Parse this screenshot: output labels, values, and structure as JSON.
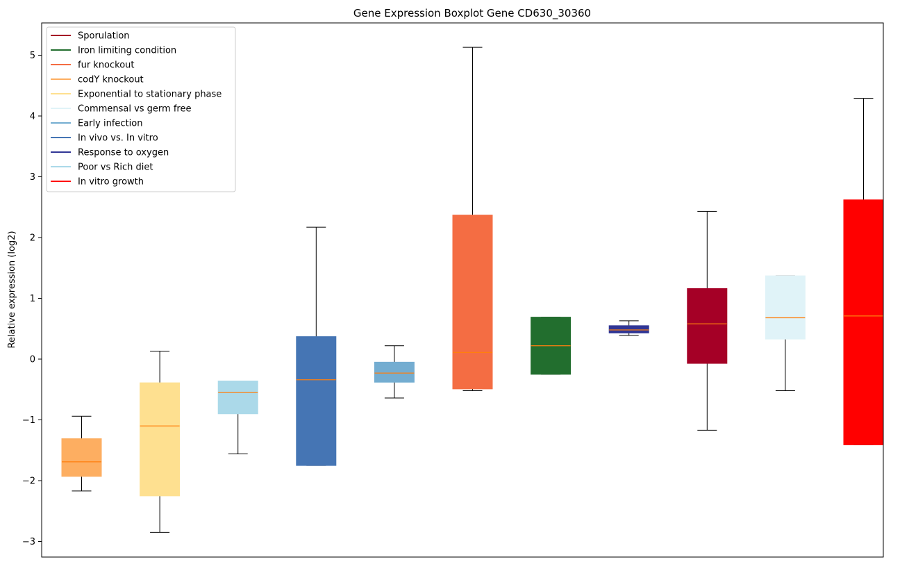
{
  "chart_data": {
    "type": "boxplot",
    "title": "Gene Expression Boxplot Gene CD630_30360",
    "xlabel": "",
    "ylabel": "Relative expression (log2)",
    "ylim": [
      -3.3,
      5.5
    ],
    "yticks": [
      -3,
      -2,
      -1,
      0,
      1,
      2,
      3,
      4,
      5
    ],
    "ytick_labels": [
      "−3",
      "−2",
      "−1",
      "0",
      "1",
      "2",
      "3",
      "4",
      "5"
    ],
    "grid": false,
    "legend_position": "top-left",
    "legend": [
      {
        "label": "Sporulation",
        "color": "#a50026"
      },
      {
        "label": "Iron limiting condition",
        "color": "#226e2e"
      },
      {
        "label": "fur knockout",
        "color": "#f46d43"
      },
      {
        "label": "codY knockout",
        "color": "#fdae61"
      },
      {
        "label": "Exponential to stationary phase",
        "color": "#fee090"
      },
      {
        "label": "Commensal vs germ free",
        "color": "#e0f3f8"
      },
      {
        "label": "Early infection",
        "color": "#74add1"
      },
      {
        "label": "In vivo vs. In vitro",
        "color": "#4575b4"
      },
      {
        "label": "Response to oxygen",
        "color": "#313695"
      },
      {
        "label": "Poor vs Rich diet",
        "color": "#abd9e9"
      },
      {
        "label": "In vitro growth",
        "color": "#ff0000"
      }
    ],
    "boxes": [
      {
        "condition": "codY knockout",
        "color": "#fdae61",
        "whisker_low": -2.17,
        "q1": -1.93,
        "median": -1.69,
        "q3": -1.31,
        "whisker_high": -0.94
      },
      {
        "condition": "Exponential to stationary phase",
        "color": "#fee090",
        "whisker_low": -2.85,
        "q1": -2.25,
        "median": -1.1,
        "q3": -0.39,
        "whisker_high": 0.13
      },
      {
        "condition": "Poor vs Rich diet",
        "color": "#abd9e9",
        "whisker_low": -1.56,
        "q1": -0.9,
        "median": -0.55,
        "q3": -0.36,
        "whisker_high": -0.36
      },
      {
        "condition": "In vivo vs. In vitro",
        "color": "#4575b4",
        "whisker_low": -1.75,
        "q1": -1.75,
        "median": -0.34,
        "q3": 0.37,
        "whisker_high": 2.17
      },
      {
        "condition": "Early infection",
        "color": "#74add1",
        "whisker_low": -0.64,
        "q1": -0.38,
        "median": -0.23,
        "q3": -0.05,
        "whisker_high": 0.22
      },
      {
        "condition": "fur knockout",
        "color": "#f46d43",
        "whisker_low": -0.52,
        "q1": -0.49,
        "median": 0.11,
        "q3": 2.37,
        "whisker_high": 5.13
      },
      {
        "condition": "Iron limiting condition",
        "color": "#226e2e",
        "whisker_low": -0.25,
        "q1": -0.25,
        "median": 0.22,
        "q3": 0.69,
        "whisker_high": 0.69
      },
      {
        "condition": "Response to oxygen",
        "color": "#313695",
        "whisker_low": 0.39,
        "q1": 0.43,
        "median": 0.48,
        "q3": 0.55,
        "whisker_high": 0.63
      },
      {
        "condition": "Sporulation",
        "color": "#a50026",
        "whisker_low": -1.17,
        "q1": -0.07,
        "median": 0.58,
        "q3": 1.16,
        "whisker_high": 2.43
      },
      {
        "condition": "Commensal vs germ free",
        "color": "#e0f3f8",
        "whisker_low": -0.52,
        "q1": 0.33,
        "median": 0.68,
        "q3": 1.37,
        "whisker_high": 1.37
      },
      {
        "condition": "In vitro growth",
        "color": "#ff0000",
        "whisker_low": -1.41,
        "q1": -1.41,
        "median": 0.71,
        "q3": 2.62,
        "whisker_high": 4.29
      }
    ],
    "median_color": "#ff7f0e",
    "whisker_color": "#000000"
  }
}
